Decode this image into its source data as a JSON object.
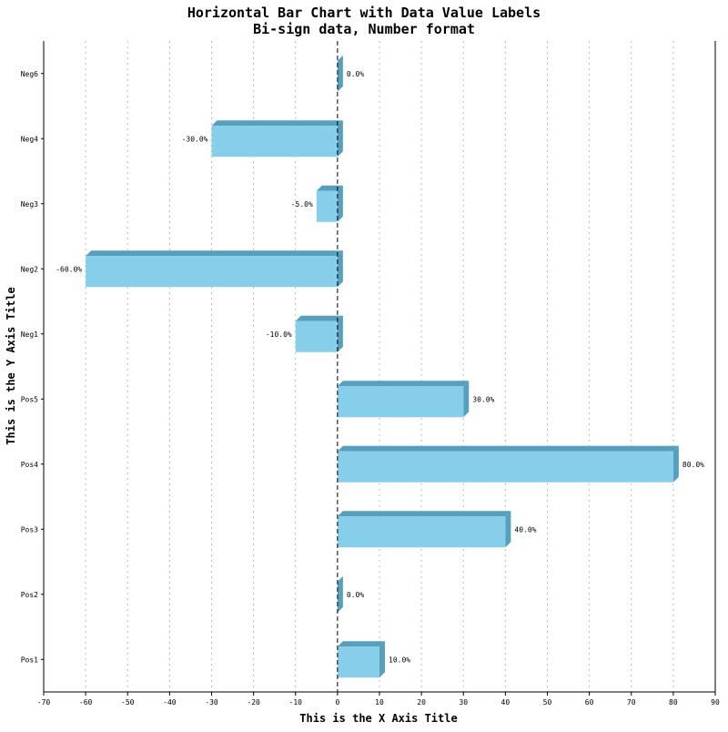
{
  "chart_data": {
    "type": "bar",
    "orientation": "horizontal",
    "title": "Horizontal Bar Chart with Data Value Labels",
    "subtitle": "Bi-sign data, Number format",
    "xlabel": "This is the X Axis Title",
    "ylabel": "This is the Y Axis Title",
    "xlim": [
      -70,
      90
    ],
    "x_ticks": [
      -70,
      -60,
      -50,
      -40,
      -30,
      -20,
      -10,
      0,
      10,
      20,
      30,
      40,
      50,
      60,
      70,
      80,
      90
    ],
    "x_tick_labels": [
      "-70",
      "-60",
      "-50",
      "-40",
      "-30",
      "-20",
      "-10",
      "0",
      "10",
      "20",
      "30",
      "40",
      "50",
      "60",
      "70",
      "80",
      "90"
    ],
    "categories": [
      "Pos1",
      "Pos2",
      "Pos3",
      "Pos4",
      "Pos5",
      "Neg1",
      "Neg2",
      "Neg3",
      "Neg4",
      "Neg6"
    ],
    "values": [
      10,
      0,
      40,
      80,
      30,
      -10,
      -60,
      -5,
      -30,
      0
    ],
    "value_labels": [
      "10.0%",
      "0.0%",
      "40.0%",
      "80.0%",
      "30.0%",
      "-10.0%",
      "-60.0%",
      "-5.0%",
      "-30.0%",
      "0.0%"
    ],
    "grid": "vertical dotted",
    "bar_color": "#87ceeb",
    "bar_shade_color": "#56a0bd",
    "grid_color": "#bbbbbb"
  }
}
